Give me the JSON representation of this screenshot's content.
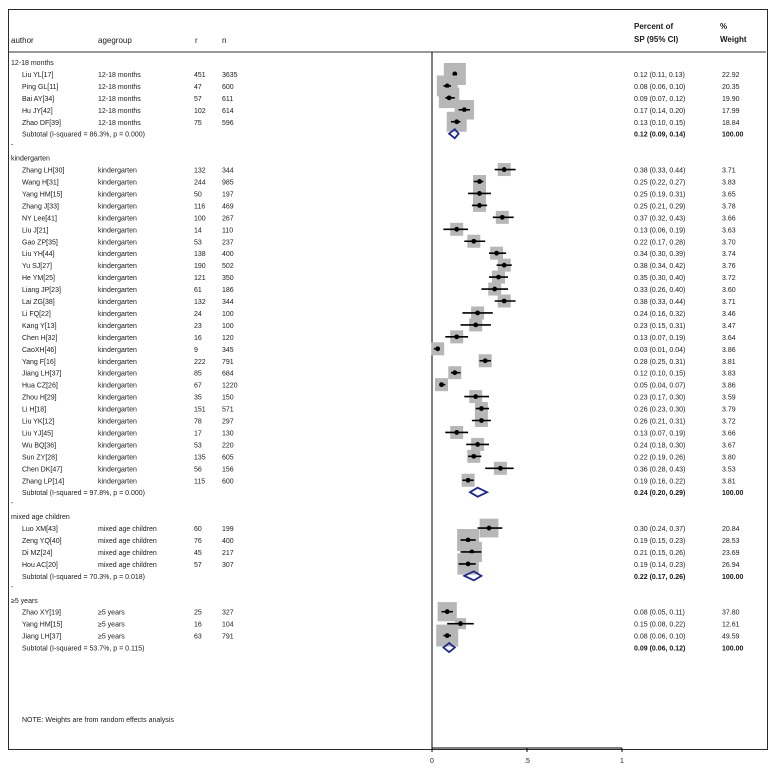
{
  "header": {
    "author": "author",
    "agegroup": "agegroup",
    "r": "r",
    "n": "n",
    "pct1": "Percent of",
    "pct2": "SP (95% CI)",
    "w1": "%",
    "w2": "Weight"
  },
  "note": "NOTE: Weights are from random effects analysis",
  "chart_data": {
    "type": "forest",
    "xticks": [
      "0",
      ".5",
      "1"
    ],
    "xlim": [
      0,
      1
    ],
    "null_line": 0,
    "groups": [
      {
        "label": "12-18 months",
        "rows": [
          {
            "author": "Liu YL[17]",
            "agegroup": "12-18 months",
            "r": "451",
            "n": "3635",
            "est": 0.12,
            "lo": 0.11,
            "hi": 0.13,
            "ci": "0.12 (0.11, 0.13)",
            "weight": "22.92"
          },
          {
            "author": "Ping GL[11]",
            "agegroup": "12-18 months",
            "r": "47",
            "n": "600",
            "est": 0.08,
            "lo": 0.06,
            "hi": 0.1,
            "ci": "0.08 (0.06, 0.10)",
            "weight": "20.35"
          },
          {
            "author": "Bai AY[34]",
            "agegroup": "12-18 months",
            "r": "57",
            "n": "611",
            "est": 0.09,
            "lo": 0.07,
            "hi": 0.12,
            "ci": "0.09 (0.07, 0.12)",
            "weight": "19.90"
          },
          {
            "author": "Hu JY[42]",
            "agegroup": "12-18 months",
            "r": "102",
            "n": "614",
            "est": 0.17,
            "lo": 0.14,
            "hi": 0.2,
            "ci": "0.17 (0.14, 0.20)",
            "weight": "17.99"
          },
          {
            "author": "Zhao DF[39]",
            "agegroup": "12-18 months",
            "r": "75",
            "n": "596",
            "est": 0.13,
            "lo": 0.1,
            "hi": 0.15,
            "ci": "0.13 (0.10, 0.15)",
            "weight": "18.84"
          }
        ],
        "subtotal": {
          "label": "Subtotal  (I-squared = 86.3%, p = 0.000)",
          "est": 0.12,
          "lo": 0.09,
          "hi": 0.14,
          "ci": "0.12 (0.09, 0.14)",
          "weight": "100.00"
        }
      },
      {
        "label": "kindergarten",
        "rows": [
          {
            "author": "Zhang LH[30]",
            "agegroup": "kindergarten",
            "r": "132",
            "n": "344",
            "est": 0.38,
            "lo": 0.33,
            "hi": 0.44,
            "ci": "0.38 (0.33, 0.44)",
            "weight": "3.71"
          },
          {
            "author": "Wang H[31]",
            "agegroup": "kindergarten",
            "r": "244",
            "n": "985",
            "est": 0.25,
            "lo": 0.22,
            "hi": 0.27,
            "ci": "0.25 (0.22, 0.27)",
            "weight": "3.83"
          },
          {
            "author": "Yang HM[15]",
            "agegroup": "kindergarten",
            "r": "50",
            "n": "197",
            "est": 0.25,
            "lo": 0.19,
            "hi": 0.31,
            "ci": "0.25 (0.19, 0.31)",
            "weight": "3.65"
          },
          {
            "author": "Zhang J[33]",
            "agegroup": "kindergarten",
            "r": "116",
            "n": "469",
            "est": 0.25,
            "lo": 0.21,
            "hi": 0.29,
            "ci": "0.25 (0.21, 0.29)",
            "weight": "3.78"
          },
          {
            "author": "NY Lee[41]",
            "agegroup": "kindergarten",
            "r": "100",
            "n": "267",
            "est": 0.37,
            "lo": 0.32,
            "hi": 0.43,
            "ci": "0.37 (0.32, 0.43)",
            "weight": "3.66"
          },
          {
            "author": "Liu J[21]",
            "agegroup": "kindergarten",
            "r": "14",
            "n": "110",
            "est": 0.13,
            "lo": 0.06,
            "hi": 0.19,
            "ci": "0.13 (0.06, 0.19)",
            "weight": "3.63"
          },
          {
            "author": "Gao ZP[35]",
            "agegroup": "kindergarten",
            "r": "53",
            "n": "237",
            "est": 0.22,
            "lo": 0.17,
            "hi": 0.28,
            "ci": "0.22 (0.17, 0.28)",
            "weight": "3.70"
          },
          {
            "author": "Liu YH[44]",
            "agegroup": "kindergarten",
            "r": "138",
            "n": "400",
            "est": 0.34,
            "lo": 0.3,
            "hi": 0.39,
            "ci": "0.34 (0.30, 0.39)",
            "weight": "3.74"
          },
          {
            "author": "Yu SJ[27]",
            "agegroup": "kindergarten",
            "r": "190",
            "n": "502",
            "est": 0.38,
            "lo": 0.34,
            "hi": 0.42,
            "ci": "0.38 (0.34, 0.42)",
            "weight": "3.76"
          },
          {
            "author": "He YM[25]",
            "agegroup": "kindergarten",
            "r": "121",
            "n": "350",
            "est": 0.35,
            "lo": 0.3,
            "hi": 0.4,
            "ci": "0.35 (0.30, 0.40)",
            "weight": "3.72"
          },
          {
            "author": "Liang JP[23]",
            "agegroup": "kindergarten",
            "r": "61",
            "n": "186",
            "est": 0.33,
            "lo": 0.26,
            "hi": 0.4,
            "ci": "0.33 (0.26, 0.40)",
            "weight": "3.60"
          },
          {
            "author": "Lai ZG[38]",
            "agegroup": "kindergarten",
            "r": "132",
            "n": "344",
            "est": 0.38,
            "lo": 0.33,
            "hi": 0.44,
            "ci": "0.38 (0.33, 0.44)",
            "weight": "3.71"
          },
          {
            "author": "Li FQ[22]",
            "agegroup": "kindergarten",
            "r": "24",
            "n": "100",
            "est": 0.24,
            "lo": 0.16,
            "hi": 0.32,
            "ci": "0.24 (0.16, 0.32)",
            "weight": "3.46"
          },
          {
            "author": "Kang Y[13]",
            "agegroup": "kindergarten",
            "r": "23",
            "n": "100",
            "est": 0.23,
            "lo": 0.15,
            "hi": 0.31,
            "ci": "0.23 (0.15, 0.31)",
            "weight": "3.47"
          },
          {
            "author": "Chen H[32]",
            "agegroup": "kindergarten",
            "r": "16",
            "n": "120",
            "est": 0.13,
            "lo": 0.07,
            "hi": 0.19,
            "ci": "0.13 (0.07, 0.19)",
            "weight": "3.64"
          },
          {
            "author": "CaoXH[46]",
            "agegroup": "kindergarten",
            "r": "9",
            "n": "345",
            "est": 0.03,
            "lo": 0.01,
            "hi": 0.04,
            "ci": "0.03 (0.01, 0.04)",
            "weight": "3.86"
          },
          {
            "author": "Yang F[16]",
            "agegroup": "kindergarten",
            "r": "222",
            "n": "791",
            "est": 0.28,
            "lo": 0.25,
            "hi": 0.31,
            "ci": "0.28 (0.25, 0.31)",
            "weight": "3.81"
          },
          {
            "author": "Jiang LH[37]",
            "agegroup": "kindergarten",
            "r": "85",
            "n": "684",
            "est": 0.12,
            "lo": 0.1,
            "hi": 0.15,
            "ci": "0.12 (0.10, 0.15)",
            "weight": "3.83"
          },
          {
            "author": "Hua CZ[26]",
            "agegroup": "kindergarten",
            "r": "67",
            "n": "1220",
            "est": 0.05,
            "lo": 0.04,
            "hi": 0.07,
            "ci": "0.05 (0.04, 0.07)",
            "weight": "3.86"
          },
          {
            "author": "Zhou H[29]",
            "agegroup": "kindergarten",
            "r": "35",
            "n": "150",
            "est": 0.23,
            "lo": 0.17,
            "hi": 0.3,
            "ci": "0.23 (0.17, 0.30)",
            "weight": "3.59"
          },
          {
            "author": "Li H[18]",
            "agegroup": "kindergarten",
            "r": "151",
            "n": "571",
            "est": 0.26,
            "lo": 0.23,
            "hi": 0.3,
            "ci": "0.26 (0.23, 0.30)",
            "weight": "3.79"
          },
          {
            "author": "Liu YK[12]",
            "agegroup": "kindergarten",
            "r": "78",
            "n": "297",
            "est": 0.26,
            "lo": 0.21,
            "hi": 0.31,
            "ci": "0.26 (0.21, 0.31)",
            "weight": "3.72"
          },
          {
            "author": "Liu YJ[45]",
            "agegroup": "kindergarten",
            "r": "17",
            "n": "130",
            "est": 0.13,
            "lo": 0.07,
            "hi": 0.19,
            "ci": "0.13 (0.07, 0.19)",
            "weight": "3.66"
          },
          {
            "author": "Wu BQ[36]",
            "agegroup": "kindergarten",
            "r": "53",
            "n": "220",
            "est": 0.24,
            "lo": 0.18,
            "hi": 0.3,
            "ci": "0.24 (0.18, 0.30)",
            "weight": "3.67"
          },
          {
            "author": "Sun ZY[28]",
            "agegroup": "kindergarten",
            "r": "135",
            "n": "605",
            "est": 0.22,
            "lo": 0.19,
            "hi": 0.26,
            "ci": "0.22 (0.19, 0.26)",
            "weight": "3.80"
          },
          {
            "author": "Chen DK[47]",
            "agegroup": "kindergarten",
            "r": "56",
            "n": "156",
            "est": 0.36,
            "lo": 0.28,
            "hi": 0.43,
            "ci": "0.36 (0.28, 0.43)",
            "weight": "3.53"
          },
          {
            "author": "Zhang LP[14]",
            "agegroup": "kindergarten",
            "r": "115",
            "n": "600",
            "est": 0.19,
            "lo": 0.16,
            "hi": 0.22,
            "ci": "0.19 (0.16, 0.22)",
            "weight": "3.81"
          }
        ],
        "subtotal": {
          "label": "Subtotal  (I-squared = 97.8%, p = 0.000)",
          "est": 0.24,
          "lo": 0.2,
          "hi": 0.29,
          "ci": "0.24 (0.20, 0.29)",
          "weight": "100.00"
        }
      },
      {
        "label": "mixed age children",
        "rows": [
          {
            "author": "Luo XM[43]",
            "agegroup": "mixed age children",
            "r": "60",
            "n": "199",
            "est": 0.3,
            "lo": 0.24,
            "hi": 0.37,
            "ci": "0.30 (0.24, 0.37)",
            "weight": "20.84"
          },
          {
            "author": "Zeng YQ[40]",
            "agegroup": "mixed age children",
            "r": "76",
            "n": "400",
            "est": 0.19,
            "lo": 0.15,
            "hi": 0.23,
            "ci": "0.19 (0.15, 0.23)",
            "weight": "28.53"
          },
          {
            "author": "Di MZ[24]",
            "agegroup": "mixed age children",
            "r": "45",
            "n": "217",
            "est": 0.21,
            "lo": 0.15,
            "hi": 0.26,
            "ci": "0.21 (0.15, 0.26)",
            "weight": "23.69"
          },
          {
            "author": "Hou AC[20]",
            "agegroup": "mixed age children",
            "r": "57",
            "n": "307",
            "est": 0.19,
            "lo": 0.14,
            "hi": 0.23,
            "ci": "0.19 (0.14, 0.23)",
            "weight": "26.94"
          }
        ],
        "subtotal": {
          "label": "Subtotal  (I-squared = 70.3%, p = 0.018)",
          "est": 0.22,
          "lo": 0.17,
          "hi": 0.26,
          "ci": "0.22 (0.17, 0.26)",
          "weight": "100.00"
        }
      },
      {
        "label": "≥5 years",
        "rows": [
          {
            "author": "Zhao XY[19]",
            "agegroup": "≥5 years",
            "r": "25",
            "n": "327",
            "est": 0.08,
            "lo": 0.05,
            "hi": 0.11,
            "ci": "0.08 (0.05, 0.11)",
            "weight": "37.80"
          },
          {
            "author": "Yang HM[15]",
            "agegroup": "≥5 years",
            "r": "16",
            "n": "104",
            "est": 0.15,
            "lo": 0.08,
            "hi": 0.22,
            "ci": "0.15 (0.08, 0.22)",
            "weight": "12.61"
          },
          {
            "author": "Jiang LH[37]",
            "agegroup": "≥5 years",
            "r": "63",
            "n": "791",
            "est": 0.08,
            "lo": 0.06,
            "hi": 0.1,
            "ci": "0.08 (0.06, 0.10)",
            "weight": "49.59"
          }
        ],
        "subtotal": {
          "label": "Subtotal  (I-squared = 53.7%, p = 0.115)",
          "est": 0.09,
          "lo": 0.06,
          "hi": 0.12,
          "ci": "0.09 (0.06, 0.12)",
          "weight": "100.00"
        }
      }
    ]
  }
}
